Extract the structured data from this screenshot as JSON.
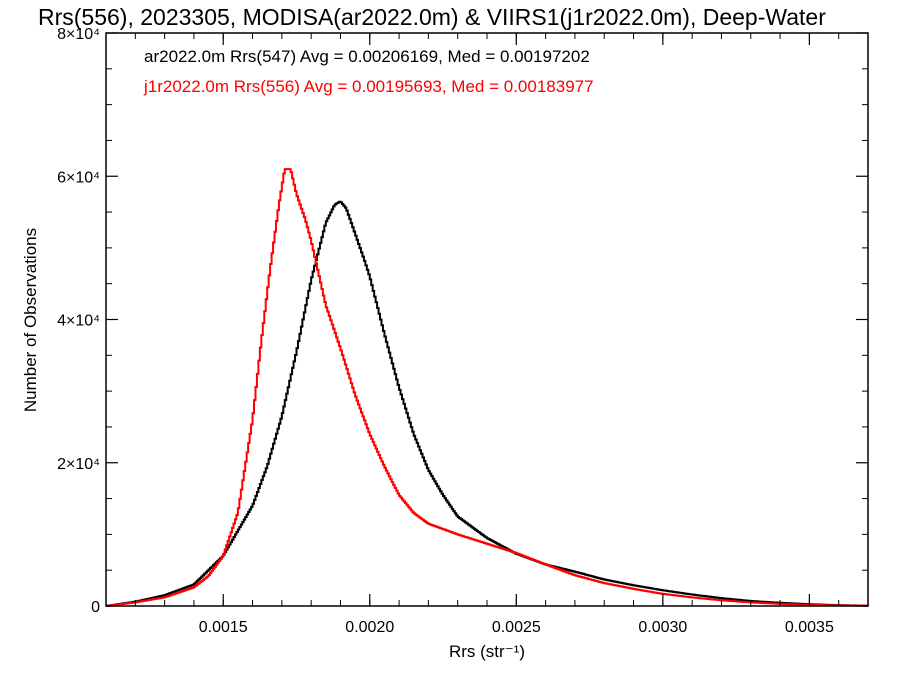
{
  "chart_data": {
    "type": "line",
    "title": "Rrs(556), 2023305, MODISA(ar2022.0m) & VIIRS1(j1r2022.0m), Deep-Water",
    "xlabel": "Rrs (str⁻¹)",
    "ylabel": "Number of Observations",
    "xlim": [
      0.0011,
      0.0037
    ],
    "ylim": [
      0,
      80000
    ],
    "x_ticks": [
      0.0015,
      0.002,
      0.0025,
      0.003,
      0.0035
    ],
    "x_tick_labels": [
      "0.0015",
      "0.0020",
      "0.0025",
      "0.0030",
      "0.0035"
    ],
    "y_ticks": [
      0,
      20000,
      40000,
      60000,
      80000
    ],
    "y_tick_labels": [
      "0",
      "2×10⁴",
      "4×10⁴",
      "6×10⁴",
      "8×10⁴"
    ],
    "grid": false,
    "annotations": [
      {
        "text": "ar2022.0m Rrs(547) Avg = 0.00206169, Med = 0.00197202",
        "color": "#000000"
      },
      {
        "text": "j1r2022.0m Rrs(556) Avg = 0.00195693, Med = 0.00183977",
        "color": "#ff0000"
      }
    ],
    "series": [
      {
        "color": "#000000",
        "style": "step",
        "x": [
          0.0011,
          0.0012,
          0.0013,
          0.0014,
          0.0015,
          0.0016,
          0.00165,
          0.0017,
          0.00175,
          0.0018,
          0.00185,
          0.00188,
          0.0019,
          0.00192,
          0.00195,
          0.00198,
          0.002,
          0.00205,
          0.0021,
          0.00215,
          0.0022,
          0.00225,
          0.0023,
          0.0024,
          0.0025,
          0.0026,
          0.0027,
          0.0028,
          0.0029,
          0.003,
          0.0031,
          0.0032,
          0.0033,
          0.0034,
          0.0035,
          0.0036,
          0.0037
        ],
        "y": [
          0,
          600,
          1500,
          3000,
          7000,
          14000,
          19500,
          26500,
          35500,
          45500,
          53500,
          56000,
          56500,
          55500,
          52000,
          48500,
          46000,
          38000,
          30500,
          24000,
          19000,
          15500,
          12500,
          9500,
          7300,
          5800,
          4800,
          3700,
          2900,
          2200,
          1600,
          1100,
          700,
          450,
          250,
          120,
          50
        ]
      },
      {
        "color": "#ff0000",
        "style": "step",
        "x": [
          0.0011,
          0.0012,
          0.0013,
          0.0014,
          0.00145,
          0.0015,
          0.00155,
          0.0016,
          0.00163,
          0.00166,
          0.00169,
          0.00171,
          0.00173,
          0.00175,
          0.00178,
          0.0018,
          0.00185,
          0.0019,
          0.00195,
          0.002,
          0.00205,
          0.0021,
          0.00215,
          0.0022,
          0.0023,
          0.0024,
          0.0025,
          0.0026,
          0.0027,
          0.0028,
          0.0029,
          0.003,
          0.0031,
          0.0032,
          0.0033,
          0.0034,
          0.0035,
          0.0036,
          0.0037
        ],
        "y": [
          0,
          500,
          1200,
          2600,
          4200,
          7000,
          13000,
          26000,
          37000,
          47000,
          56000,
          61000,
          61000,
          57500,
          54000,
          51000,
          42000,
          36000,
          29500,
          24000,
          19500,
          15500,
          13000,
          11500,
          10000,
          8700,
          7400,
          5800,
          4300,
          3200,
          2400,
          1700,
          1200,
          800,
          500,
          300,
          150,
          80,
          40
        ]
      }
    ]
  }
}
